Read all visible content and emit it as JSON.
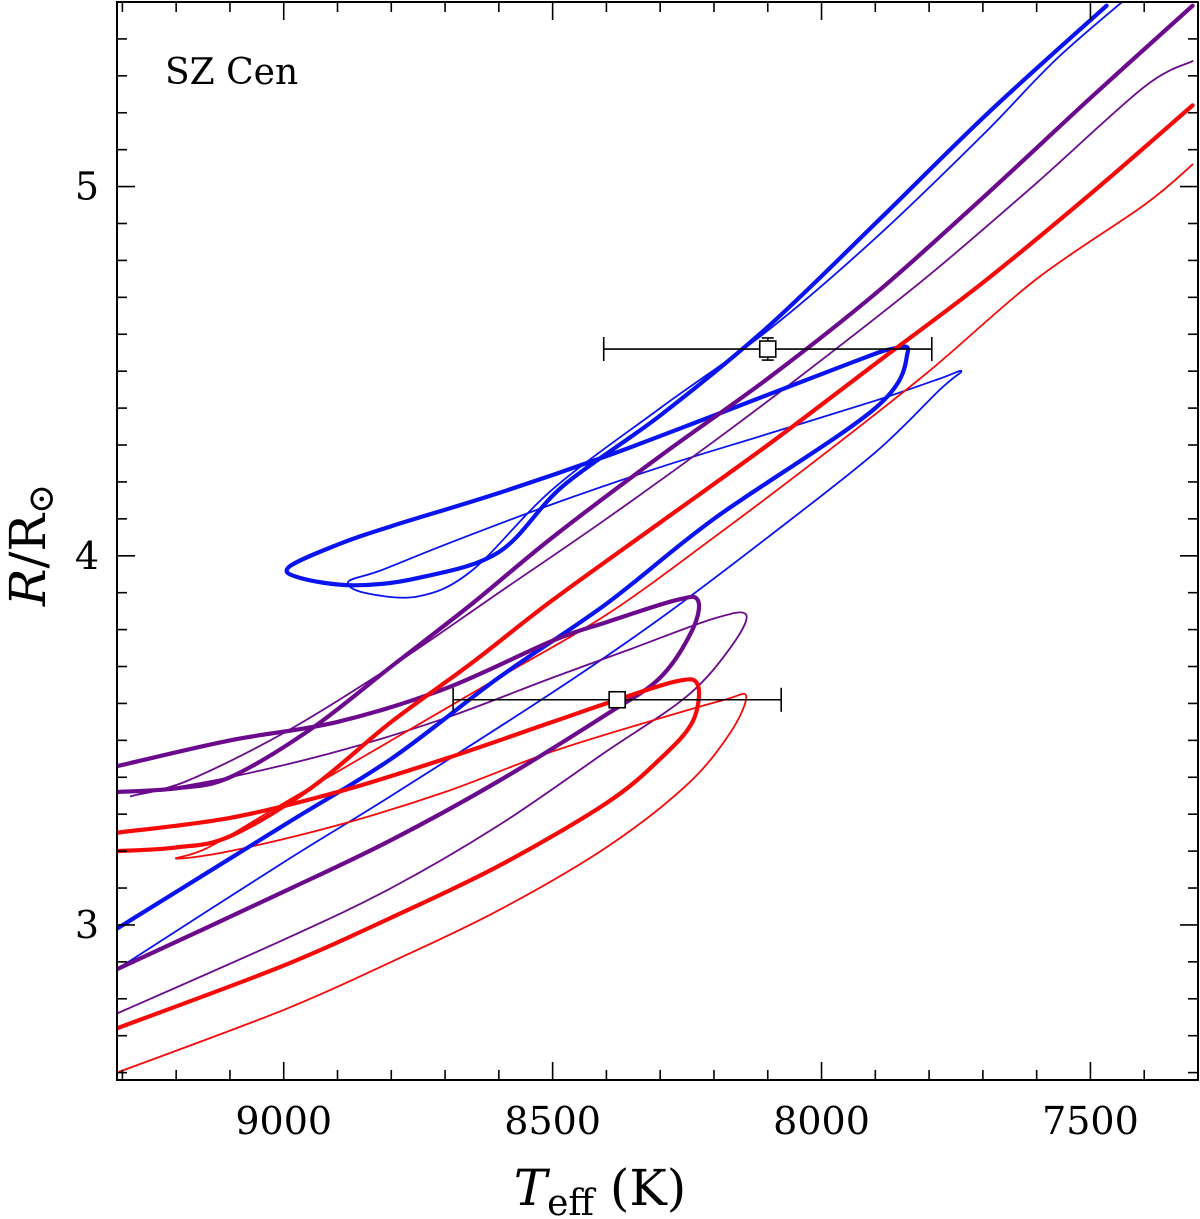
{
  "chart_data": {
    "type": "line",
    "title": "",
    "annotation": "SZ Cen",
    "xlabel_main": "T",
    "xlabel_sub": "eff",
    "xlabel_unit": " (K)",
    "ylabel_main": "R",
    "ylabel_unit": "/R",
    "ylabel_sun": "⊙",
    "xlim": [
      9310,
      7300
    ],
    "ylim": [
      2.58,
      5.5
    ],
    "x_ticks": [
      9000,
      8500,
      8000,
      7500
    ],
    "x_tick_labels": [
      "9000",
      "8500",
      "8000",
      "7500"
    ],
    "y_ticks": [
      3,
      4,
      5
    ],
    "y_tick_labels": [
      "3",
      "4",
      "5"
    ],
    "grid": false,
    "legend": "none",
    "colors": {
      "blue": "#0a14ee",
      "purple": "#6b0a8c",
      "red": "#f50a0a",
      "axis": "#000000"
    },
    "series": [
      {
        "name": "blue-thick",
        "color": "#0a14ee",
        "width": "thick",
        "points": [
          [
            9310,
            2.99
          ],
          [
            9000,
            3.27
          ],
          [
            8800,
            3.45
          ],
          [
            8600,
            3.67
          ],
          [
            8400,
            3.87
          ],
          [
            8200,
            4.1
          ],
          [
            7900,
            4.4
          ],
          [
            7840,
            4.55
          ],
          [
            7870,
            4.56
          ],
          [
            7950,
            4.52
          ],
          [
            8200,
            4.38
          ],
          [
            8400,
            4.27
          ],
          [
            8600,
            4.17
          ],
          [
            8800,
            4.08
          ],
          [
            8900,
            4.03
          ],
          [
            8990,
            3.97
          ],
          [
            8970,
            3.94
          ],
          [
            8870,
            3.92
          ],
          [
            8750,
            3.94
          ],
          [
            8600,
            4.01
          ],
          [
            8480,
            4.19
          ],
          [
            8300,
            4.38
          ],
          [
            8100,
            4.62
          ],
          [
            7900,
            4.9
          ],
          [
            7690,
            5.2
          ],
          [
            7470,
            5.49
          ]
        ]
      },
      {
        "name": "blue-thin",
        "color": "#0a14ee",
        "width": "thin",
        "points": [
          [
            9310,
            2.88
          ],
          [
            9000,
            3.17
          ],
          [
            8800,
            3.35
          ],
          [
            8500,
            3.63
          ],
          [
            8300,
            3.83
          ],
          [
            8100,
            4.05
          ],
          [
            7900,
            4.28
          ],
          [
            7780,
            4.45
          ],
          [
            7740,
            4.5
          ],
          [
            7780,
            4.48
          ],
          [
            7900,
            4.42
          ],
          [
            8100,
            4.33
          ],
          [
            8300,
            4.24
          ],
          [
            8500,
            4.14
          ],
          [
            8700,
            4.03
          ],
          [
            8820,
            3.96
          ],
          [
            8880,
            3.93
          ],
          [
            8850,
            3.9
          ],
          [
            8750,
            3.89
          ],
          [
            8650,
            3.96
          ],
          [
            8500,
            4.18
          ],
          [
            8300,
            4.4
          ],
          [
            8100,
            4.61
          ],
          [
            7900,
            4.86
          ],
          [
            7700,
            5.14
          ],
          [
            7560,
            5.35
          ],
          [
            7400,
            5.55
          ]
        ]
      },
      {
        "name": "purple-thick",
        "color": "#6b0a8c",
        "width": "thick",
        "points": [
          [
            9310,
            2.88
          ],
          [
            9000,
            3.09
          ],
          [
            8800,
            3.23
          ],
          [
            8600,
            3.39
          ],
          [
            8400,
            3.57
          ],
          [
            8300,
            3.67
          ],
          [
            8240,
            3.8
          ],
          [
            8230,
            3.88
          ],
          [
            8270,
            3.88
          ],
          [
            8400,
            3.82
          ],
          [
            8500,
            3.77
          ],
          [
            8700,
            3.64
          ],
          [
            8900,
            3.55
          ],
          [
            9100,
            3.5
          ],
          [
            9310,
            3.43
          ]
        ]
      },
      {
        "name": "purple-bottom-loop",
        "color": "#6b0a8c",
        "width": "thick",
        "points": [
          [
            9310,
            3.36
          ],
          [
            9200,
            3.37
          ],
          [
            9100,
            3.4
          ],
          [
            8950,
            3.53
          ],
          [
            8800,
            3.7
          ],
          [
            8650,
            3.87
          ],
          [
            8500,
            4.05
          ],
          [
            8300,
            4.27
          ],
          [
            8100,
            4.48
          ],
          [
            7900,
            4.71
          ],
          [
            7700,
            4.97
          ],
          [
            7500,
            5.24
          ],
          [
            7310,
            5.49
          ]
        ]
      },
      {
        "name": "purple-thin",
        "color": "#6b0a8c",
        "width": "thin",
        "points": [
          [
            9310,
            2.76
          ],
          [
            9000,
            2.96
          ],
          [
            8800,
            3.1
          ],
          [
            8600,
            3.27
          ],
          [
            8400,
            3.47
          ],
          [
            8250,
            3.62
          ],
          [
            8170,
            3.75
          ],
          [
            8140,
            3.84
          ],
          [
            8200,
            3.83
          ],
          [
            8350,
            3.75
          ],
          [
            8500,
            3.67
          ],
          [
            8700,
            3.56
          ],
          [
            8900,
            3.47
          ],
          [
            9100,
            3.4
          ],
          [
            9250,
            3.36
          ],
          [
            9280,
            3.35
          ],
          [
            9180,
            3.39
          ],
          [
            9000,
            3.52
          ],
          [
            8800,
            3.7
          ],
          [
            8600,
            3.9
          ],
          [
            8400,
            4.1
          ],
          [
            8200,
            4.31
          ],
          [
            8000,
            4.53
          ],
          [
            7800,
            4.76
          ],
          [
            7600,
            5.01
          ],
          [
            7400,
            5.27
          ],
          [
            7310,
            5.34
          ]
        ]
      },
      {
        "name": "red-thick",
        "color": "#f50a0a",
        "width": "thick",
        "points": [
          [
            9310,
            2.72
          ],
          [
            9000,
            2.89
          ],
          [
            8800,
            3.02
          ],
          [
            8600,
            3.16
          ],
          [
            8400,
            3.33
          ],
          [
            8300,
            3.45
          ],
          [
            8240,
            3.55
          ],
          [
            8230,
            3.65
          ],
          [
            8270,
            3.66
          ],
          [
            8400,
            3.6
          ],
          [
            8500,
            3.55
          ],
          [
            8700,
            3.45
          ],
          [
            8900,
            3.36
          ],
          [
            9100,
            3.29
          ],
          [
            9310,
            3.25
          ]
        ]
      },
      {
        "name": "red-bottom-loop",
        "color": "#f50a0a",
        "width": "thick",
        "points": [
          [
            9310,
            3.2
          ],
          [
            9200,
            3.21
          ],
          [
            9100,
            3.24
          ],
          [
            8950,
            3.37
          ],
          [
            8800,
            3.55
          ],
          [
            8650,
            3.71
          ],
          [
            8500,
            3.88
          ],
          [
            8300,
            4.09
          ],
          [
            8100,
            4.3
          ],
          [
            7900,
            4.52
          ],
          [
            7700,
            4.74
          ],
          [
            7500,
            4.98
          ],
          [
            7310,
            5.22
          ]
        ]
      },
      {
        "name": "red-thin",
        "color": "#f50a0a",
        "width": "thin",
        "points": [
          [
            9310,
            2.6
          ],
          [
            9000,
            2.77
          ],
          [
            8800,
            2.9
          ],
          [
            8600,
            3.04
          ],
          [
            8400,
            3.21
          ],
          [
            8250,
            3.38
          ],
          [
            8170,
            3.52
          ],
          [
            8140,
            3.62
          ],
          [
            8180,
            3.61
          ],
          [
            8300,
            3.56
          ],
          [
            8500,
            3.47
          ],
          [
            8700,
            3.36
          ],
          [
            8900,
            3.27
          ],
          [
            9100,
            3.2
          ],
          [
            9200,
            3.18
          ],
          [
            9140,
            3.21
          ],
          [
            9000,
            3.33
          ],
          [
            8800,
            3.5
          ],
          [
            8600,
            3.67
          ],
          [
            8400,
            3.84
          ],
          [
            8200,
            4.05
          ],
          [
            8000,
            4.27
          ],
          [
            7800,
            4.5
          ],
          [
            7600,
            4.75
          ],
          [
            7400,
            4.95
          ],
          [
            7310,
            5.06
          ]
        ]
      }
    ],
    "data_points": [
      {
        "name": "upper-star",
        "x": 8100,
        "y": 4.56,
        "xerr": 305,
        "yerr": 0.03
      },
      {
        "name": "lower-star",
        "x": 8380,
        "y": 3.61,
        "xerr": 305,
        "yerr": 0.02
      }
    ]
  }
}
